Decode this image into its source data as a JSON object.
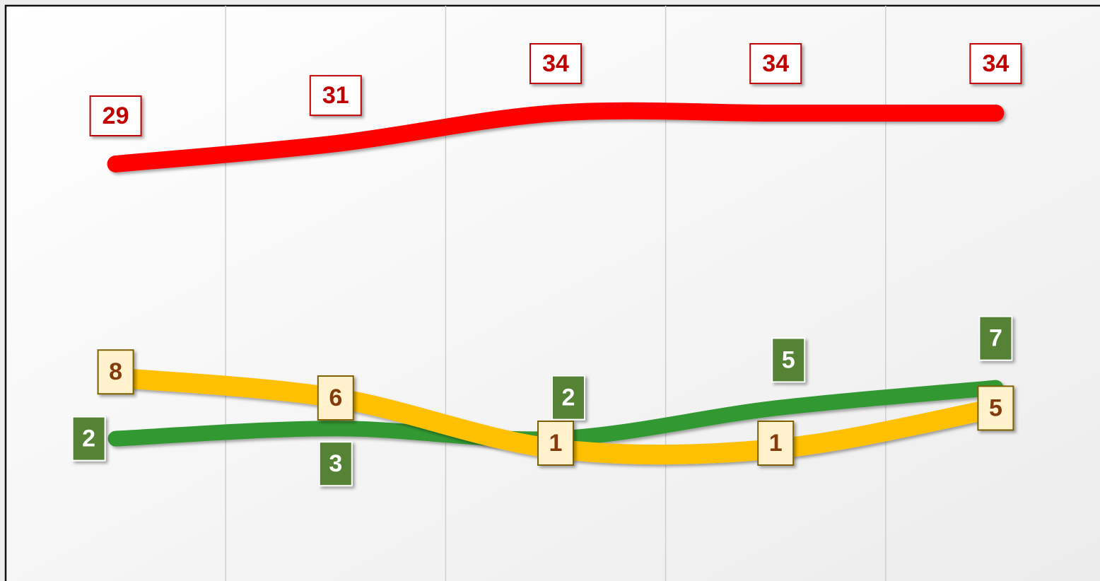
{
  "chart_data": {
    "type": "line",
    "categories": [
      null,
      null,
      null,
      null,
      null
    ],
    "smooth": true,
    "series": [
      {
        "color": "#ff0000",
        "values": [
          29,
          31,
          34,
          34,
          34
        ]
      },
      {
        "color": "#ffc000",
        "values": [
          8,
          6,
          1,
          1,
          5
        ]
      },
      {
        "color": "#339933",
        "values": [
          2,
          3,
          2,
          5,
          7
        ]
      }
    ]
  }
}
